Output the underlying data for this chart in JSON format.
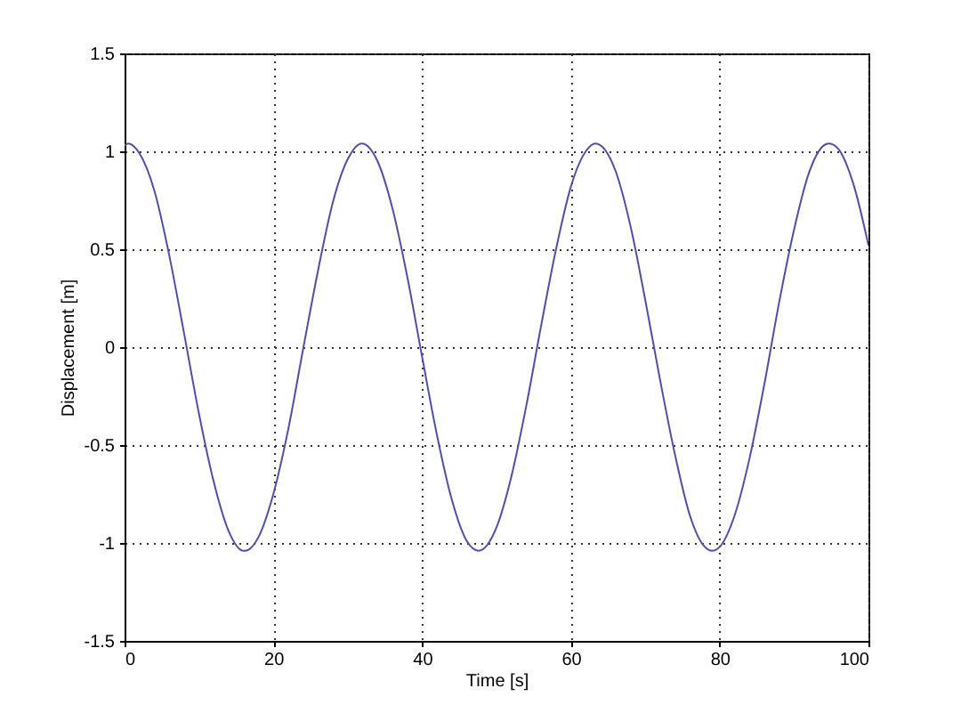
{
  "chart_data": {
    "type": "line",
    "xlabel": "Time [s]",
    "ylabel": "Displacement [m]",
    "x": [
      0,
      0.5,
      2,
      4,
      6,
      8,
      10,
      12,
      14,
      16,
      16.2,
      18,
      20,
      22,
      24,
      26,
      28,
      30,
      31.9,
      34,
      36,
      38,
      40,
      42,
      44,
      46,
      47.6,
      50,
      52,
      54,
      56,
      58,
      60,
      62,
      63.3,
      66,
      68,
      70,
      72,
      74,
      76,
      78,
      79.0,
      80,
      82,
      84,
      86,
      88,
      90,
      92,
      94,
      94.7,
      96,
      98,
      100
    ],
    "series": [
      {
        "color": "#4f4fa8",
        "values": [
          1.03,
          1.04,
          0.99,
          0.8,
          0.47,
          0.07,
          -0.34,
          -0.69,
          -0.94,
          -1.04,
          -1.04,
          -0.97,
          -0.75,
          -0.42,
          -0.01,
          0.39,
          0.74,
          0.96,
          1.04,
          0.95,
          0.71,
          0.36,
          -0.05,
          -0.45,
          -0.78,
          -0.99,
          -1.04,
          -0.92,
          -0.66,
          -0.3,
          0.11,
          0.5,
          0.82,
          1.0,
          1.04,
          0.9,
          0.62,
          0.24,
          -0.17,
          -0.55,
          -0.86,
          -1.02,
          -1.04,
          -1.02,
          -0.86,
          -0.57,
          -0.19,
          0.23,
          0.6,
          0.89,
          1.03,
          1.04,
          1.01,
          0.83,
          0.52
        ]
      }
    ],
    "xlim": [
      0,
      100
    ],
    "ylim": [
      -1.5,
      1.5
    ],
    "xticks": [
      0,
      20,
      40,
      60,
      80,
      100
    ],
    "yticks": [
      -1.5,
      -1,
      -0.5,
      0,
      0.5,
      1,
      1.5
    ],
    "grid": true,
    "line_style": "solid"
  }
}
